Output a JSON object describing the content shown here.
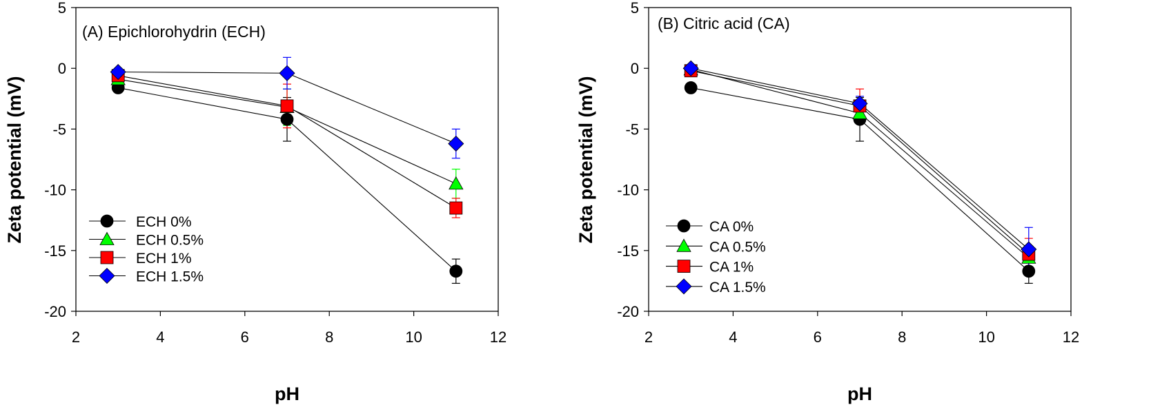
{
  "chart_data": [
    {
      "type": "line",
      "title": "(A) Epichlorohydrin (ECH)",
      "xlabel": "pH",
      "ylabel": "Zeta potential (mV)",
      "xlim": [
        2,
        12
      ],
      "ylim": [
        -20,
        5
      ],
      "xticks": [
        2,
        4,
        6,
        8,
        10,
        12
      ],
      "yticks": [
        5,
        0,
        -5,
        -10,
        -15,
        -20
      ],
      "grid": false,
      "legend_position": "lower-left",
      "x": [
        3,
        7,
        11
      ],
      "series": [
        {
          "name": "ECH 0%",
          "marker": "circle",
          "color": "#000000",
          "values": [
            -1.6,
            -4.2,
            -16.7
          ],
          "errors": [
            0.3,
            1.8,
            1.0
          ]
        },
        {
          "name": "ECH 0.5%",
          "marker": "triangle",
          "color": "#00ff00",
          "values": [
            -0.9,
            -3.2,
            -9.5
          ],
          "errors": [
            0.3,
            1.5,
            1.2
          ]
        },
        {
          "name": "ECH 1%",
          "marker": "square",
          "color": "#ff0000",
          "values": [
            -0.6,
            -3.1,
            -11.5
          ],
          "errors": [
            0.3,
            1.8,
            0.8
          ]
        },
        {
          "name": "ECH 1.5%",
          "marker": "diamond",
          "color": "#0000ff",
          "values": [
            -0.3,
            -0.4,
            -6.2
          ],
          "errors": [
            0.3,
            1.3,
            1.2
          ]
        }
      ]
    },
    {
      "type": "line",
      "title": "(B) Citric acid (CA)",
      "xlabel": "pH",
      "ylabel": "Zeta potential (mV)",
      "xlim": [
        2,
        12
      ],
      "ylim": [
        -20,
        5
      ],
      "xticks": [
        2,
        4,
        6,
        8,
        10,
        12
      ],
      "yticks": [
        5,
        0,
        -5,
        -10,
        -15,
        -20
      ],
      "grid": false,
      "legend_position": "lower-left",
      "x": [
        3,
        7,
        11
      ],
      "series": [
        {
          "name": "CA 0%",
          "marker": "circle",
          "color": "#000000",
          "values": [
            -1.6,
            -4.2,
            -16.7
          ],
          "errors": [
            0.3,
            1.8,
            1.0
          ]
        },
        {
          "name": "CA 0.5%",
          "marker": "triangle",
          "color": "#00ff00",
          "values": [
            -0.1,
            -3.7,
            -15.6
          ],
          "errors": [
            0.3,
            0.8,
            1.0
          ]
        },
        {
          "name": "CA 1%",
          "marker": "square",
          "color": "#ff0000",
          "values": [
            -0.2,
            -3.1,
            -15.3
          ],
          "errors": [
            0.3,
            1.4,
            1.3
          ]
        },
        {
          "name": "CA 1.5%",
          "marker": "diamond",
          "color": "#0000ff",
          "values": [
            0.0,
            -2.9,
            -14.9
          ],
          "errors": [
            0.3,
            0.6,
            1.8
          ]
        }
      ]
    }
  ]
}
